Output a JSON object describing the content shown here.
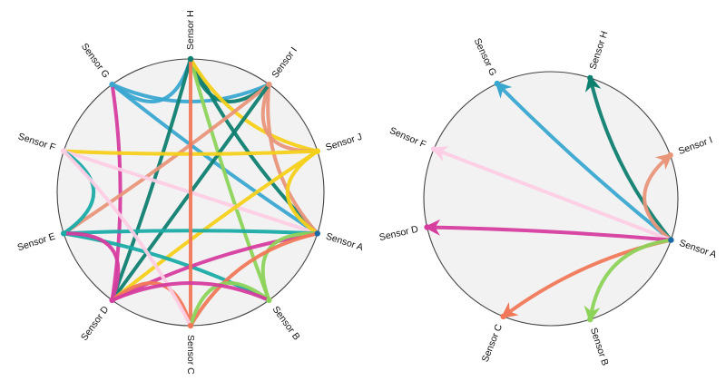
{
  "diagrams": [
    {
      "id": "left",
      "nodes": [
        {
          "key": "H",
          "label": "Sensor H",
          "angle": 90,
          "color": "#0f8070"
        },
        {
          "key": "I",
          "label": "Sensor I",
          "angle": 54,
          "color": "#e8957a"
        },
        {
          "key": "J",
          "label": "Sensor J",
          "angle": 18,
          "color": "#f4d019"
        },
        {
          "key": "A",
          "label": "Sensor A",
          "angle": -18,
          "color": "#1b6aa6"
        },
        {
          "key": "B",
          "label": "Sensor B",
          "angle": -54,
          "color": "#8dd35a"
        },
        {
          "key": "C",
          "label": "Sensor C",
          "angle": -90,
          "color": "#f07858"
        },
        {
          "key": "D",
          "label": "Sensor D",
          "angle": -126,
          "color": "#d53d9e"
        },
        {
          "key": "E",
          "label": "Sensor E",
          "angle": -162,
          "color": "#1aaba7"
        },
        {
          "key": "F",
          "label": "Sensor F",
          "angle": 162,
          "color": "#fdcde4"
        },
        {
          "key": "G",
          "label": "Sensor G",
          "angle": 126,
          "color": "#3aa7d1"
        }
      ],
      "links": [
        {
          "from": "G",
          "to": "A",
          "color": "#3aa7d1"
        },
        {
          "from": "G",
          "to": "H",
          "color": "#3aa7d1"
        },
        {
          "from": "G",
          "to": "I",
          "color": "#3aa7d1"
        },
        {
          "from": "G",
          "to": "D",
          "color": "#d53d9e"
        },
        {
          "from": "H",
          "to": "A",
          "color": "#0f8070"
        },
        {
          "from": "H",
          "to": "I",
          "color": "#0f8070"
        },
        {
          "from": "H",
          "to": "D",
          "color": "#0f8070"
        },
        {
          "from": "H",
          "to": "B",
          "color": "#8dd35a"
        },
        {
          "from": "H",
          "to": "J",
          "color": "#f4d019"
        },
        {
          "from": "I",
          "to": "J",
          "color": "#e8957a"
        },
        {
          "from": "I",
          "to": "E",
          "color": "#e8957a"
        },
        {
          "from": "I",
          "to": "A",
          "color": "#e8957a"
        },
        {
          "from": "I",
          "to": "D",
          "color": "#0f8070"
        },
        {
          "from": "F",
          "to": "J",
          "color": "#f4d019"
        },
        {
          "from": "F",
          "to": "A",
          "color": "#fdcde4"
        },
        {
          "from": "F",
          "to": "E",
          "color": "#1aaba7"
        },
        {
          "from": "J",
          "to": "D",
          "color": "#f4d019"
        },
        {
          "from": "J",
          "to": "A",
          "color": "#f4d019"
        },
        {
          "from": "E",
          "to": "A",
          "color": "#1aaba7"
        },
        {
          "from": "E",
          "to": "B",
          "color": "#1aaba7"
        },
        {
          "from": "E",
          "to": "D",
          "color": "#d53d9e"
        },
        {
          "from": "A",
          "to": "D",
          "color": "#d53d9e"
        },
        {
          "from": "A",
          "to": "B",
          "color": "#8dd35a"
        },
        {
          "from": "C",
          "to": "H",
          "color": "#f07858"
        },
        {
          "from": "C",
          "to": "D",
          "color": "#f07858"
        },
        {
          "from": "C",
          "to": "A",
          "color": "#f07858"
        },
        {
          "from": "C",
          "to": "B",
          "color": "#8dd35a"
        },
        {
          "from": "C",
          "to": "F",
          "color": "#fdcde4"
        },
        {
          "from": "D",
          "to": "B",
          "color": "#d53d9e"
        }
      ]
    },
    {
      "id": "right",
      "nodes": [
        {
          "key": "H",
          "label": "Sensor H",
          "angle": 72,
          "color": "#0f8070"
        },
        {
          "key": "I",
          "label": "Sensor I",
          "angle": 20,
          "color": "#e8957a"
        },
        {
          "key": "A",
          "label": "Sensor A",
          "angle": -19,
          "color": "#1b6aa6"
        },
        {
          "key": "B",
          "label": "Sensor B",
          "angle": -72,
          "color": "#8dd35a"
        },
        {
          "key": "C",
          "label": "Sensor C",
          "angle": -112,
          "color": "#f07858"
        },
        {
          "key": "D",
          "label": "Sensor D",
          "angle": -167,
          "color": "#d53d9e"
        },
        {
          "key": "F",
          "label": "Sensor F",
          "angle": 157,
          "color": "#fdcde4"
        },
        {
          "key": "G",
          "label": "Sensor G",
          "angle": 115,
          "color": "#3aa7d1"
        }
      ],
      "links": [
        {
          "from": "A",
          "to": "G",
          "color": "#3aa7d1"
        },
        {
          "from": "A",
          "to": "H",
          "color": "#0f8070"
        },
        {
          "from": "A",
          "to": "I",
          "color": "#e8957a"
        },
        {
          "from": "A",
          "to": "F",
          "color": "#fdcde4"
        },
        {
          "from": "A",
          "to": "D",
          "color": "#d53d9e"
        },
        {
          "from": "A",
          "to": "C",
          "color": "#f07858"
        },
        {
          "from": "A",
          "to": "B",
          "color": "#8dd35a"
        }
      ]
    }
  ]
}
